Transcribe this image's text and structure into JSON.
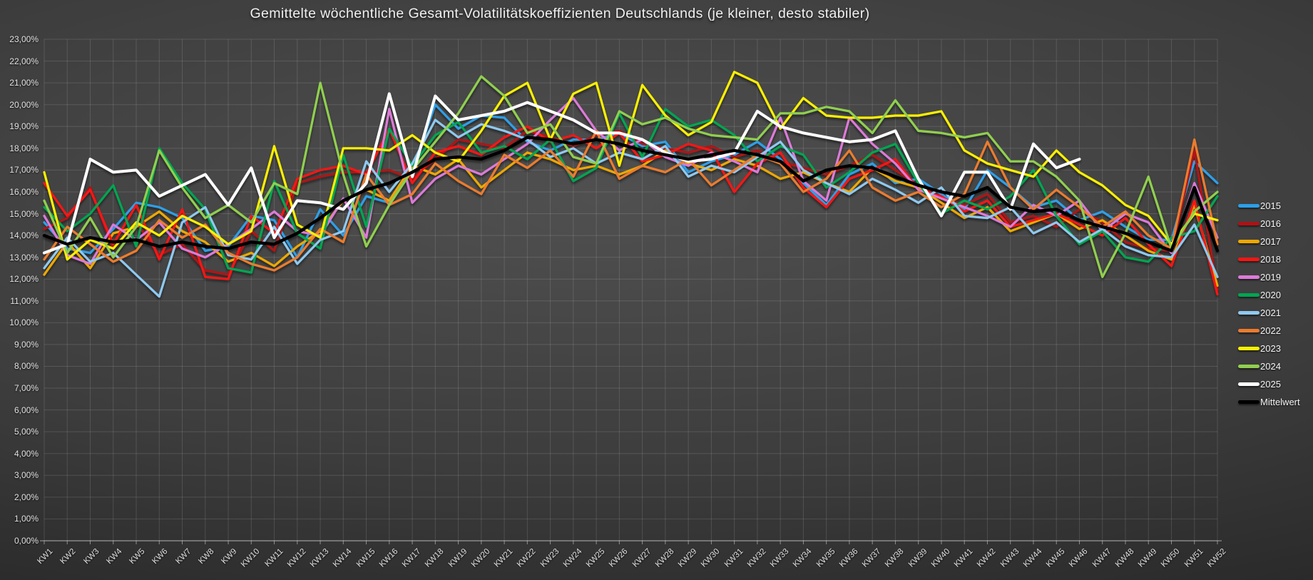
{
  "title": "Gemittelte wöchentliche Gesamt-Volatilitätskoeffizienten Deutschlands (je kleiner, desto stabiler)",
  "chart_data": {
    "type": "line",
    "grid": true,
    "legend_position": "right",
    "ylim": [
      0,
      23
    ],
    "y_step": 1,
    "y_tick_labels": [
      "0,00%",
      "1,00%",
      "2,00%",
      "3,00%",
      "4,00%",
      "5,00%",
      "6,00%",
      "7,00%",
      "8,00%",
      "9,00%",
      "10,00%",
      "11,00%",
      "12,00%",
      "13,00%",
      "14,00%",
      "15,00%",
      "16,00%",
      "17,00%",
      "18,00%",
      "19,00%",
      "20,00%",
      "21,00%",
      "22,00%",
      "23,00%"
    ],
    "categories": [
      "KW1",
      "KW2",
      "KW3",
      "KW4",
      "KW5",
      "KW6",
      "KW7",
      "KW8",
      "KW9",
      "KW10",
      "KW11",
      "KW12",
      "KW13",
      "KW14",
      "KW15",
      "KW16",
      "KW17",
      "KW18",
      "KW19",
      "KW20",
      "KW21",
      "KW22",
      "KW23",
      "KW24",
      "KW25",
      "KW26",
      "KW27",
      "KW28",
      "KW29",
      "KW30",
      "KW31",
      "KW32",
      "KW33",
      "KW34",
      "KW35",
      "KW36",
      "KW37",
      "KW38",
      "KW39",
      "KW40",
      "KW41",
      "KW42",
      "KW43",
      "KW44",
      "KW45",
      "KW46",
      "KW47",
      "KW48",
      "KW49",
      "KW50",
      "KW51",
      "KW52"
    ],
    "series": [
      {
        "name": "2015",
        "color": "#2D9FE8",
        "values": [
          14.6,
          13.4,
          13.2,
          14.3,
          15.5,
          15.3,
          14.8,
          13.3,
          13.5,
          14.9,
          14.7,
          13.0,
          15.2,
          14.0,
          15.8,
          15.5,
          17.0,
          20.0,
          18.9,
          19.5,
          19.4,
          18.3,
          17.9,
          18.4,
          18.4,
          18.7,
          18.1,
          18.3,
          16.9,
          17.4,
          17.7,
          18.3,
          17.5,
          16.4,
          15.4,
          16.8,
          17.3,
          16.4,
          16.6,
          15.9,
          15.2,
          17.0,
          16.2,
          15.3,
          15.6,
          14.7,
          15.1,
          14.4,
          13.8,
          13.8,
          17.4,
          16.4
        ]
      },
      {
        "name": "2016",
        "color": "#AE1216",
        "values": [
          14.3,
          14.8,
          16.2,
          13.4,
          14.6,
          13.1,
          13.6,
          12.4,
          12.2,
          14.2,
          13.3,
          16.4,
          16.7,
          16.9,
          16.9,
          17.0,
          16.6,
          17.5,
          18.4,
          18.2,
          18.0,
          18.8,
          18.5,
          18.1,
          18.6,
          18.8,
          18.2,
          18.0,
          17.8,
          18.1,
          17.6,
          17.9,
          17.4,
          17.1,
          16.8,
          17.2,
          17.7,
          17.0,
          16.3,
          15.7,
          15.4,
          15.9,
          14.6,
          14.9,
          14.4,
          15.2,
          14.6,
          13.7,
          13.4,
          13.3,
          17.9,
          11.5
        ]
      },
      {
        "name": "2017",
        "color": "#EDA800",
        "values": [
          12.2,
          13.7,
          12.5,
          14.1,
          14.4,
          15.1,
          14.2,
          13.7,
          12.8,
          13.2,
          12.6,
          13.5,
          14.2,
          15.6,
          16.1,
          15.6,
          17.2,
          16.8,
          17.5,
          16.2,
          17.0,
          17.8,
          17.5,
          17.0,
          17.2,
          16.8,
          17.2,
          17.9,
          17.3,
          17.0,
          17.5,
          17.2,
          16.6,
          16.9,
          16.4,
          16.0,
          17.1,
          16.5,
          16.2,
          15.5,
          14.8,
          15.3,
          14.2,
          14.6,
          15.0,
          14.3,
          14.7,
          14.0,
          13.3,
          12.9,
          15.4,
          11.7
        ]
      },
      {
        "name": "2018",
        "color": "#F71612",
        "values": [
          16.4,
          14.9,
          16.1,
          13.6,
          15.4,
          12.9,
          15.2,
          12.1,
          12.0,
          14.9,
          14.1,
          16.6,
          17.0,
          17.2,
          16.8,
          18.9,
          16.4,
          17.8,
          18.1,
          17.7,
          18.5,
          19.0,
          18.3,
          18.6,
          18.0,
          18.7,
          17.4,
          17.7,
          18.2,
          17.9,
          16.0,
          17.3,
          17.8,
          16.2,
          15.3,
          16.6,
          17.0,
          17.5,
          16.1,
          15.8,
          15.1,
          15.6,
          14.4,
          14.7,
          15.0,
          14.5,
          14.0,
          14.8,
          13.6,
          12.6,
          15.6,
          11.3
        ]
      },
      {
        "name": "2019",
        "color": "#DD7AD8",
        "values": [
          14.9,
          13.1,
          12.7,
          14.5,
          13.8,
          14.6,
          13.4,
          13.0,
          13.6,
          14.3,
          15.1,
          14.2,
          14.0,
          15.7,
          13.9,
          19.8,
          15.5,
          16.6,
          17.2,
          16.8,
          17.5,
          18.2,
          19.3,
          20.3,
          18.8,
          17.9,
          18.4,
          17.6,
          17.2,
          17.8,
          17.4,
          16.9,
          19.4,
          16.5,
          15.6,
          19.4,
          18.2,
          17.3,
          16.1,
          15.7,
          15.3,
          14.9,
          14.4,
          15.4,
          14.9,
          15.6,
          14.2,
          15.0,
          14.6,
          13.2,
          16.4,
          13.9
        ]
      },
      {
        "name": "2020",
        "color": "#00A551",
        "values": [
          15.3,
          14.2,
          15.0,
          16.3,
          13.5,
          18.0,
          16.4,
          15.2,
          12.5,
          12.3,
          16.5,
          14.1,
          13.4,
          17.7,
          14.4,
          18.9,
          17.2,
          18.6,
          19.2,
          17.8,
          18.1,
          17.5,
          18.4,
          16.5,
          17.1,
          19.6,
          17.6,
          19.8,
          19.0,
          19.3,
          18.6,
          17.4,
          18.1,
          17.7,
          16.2,
          16.9,
          17.8,
          18.2,
          16.4,
          15.0,
          15.6,
          15.2,
          15.8,
          17.0,
          14.9,
          13.6,
          14.2,
          13.0,
          12.8,
          13.9,
          14.2,
          15.8
        ]
      },
      {
        "name": "2021",
        "color": "#8FC9F0",
        "values": [
          12.5,
          13.9,
          12.8,
          13.2,
          12.2,
          11.2,
          14.6,
          15.3,
          13.1,
          12.9,
          14.4,
          12.7,
          13.8,
          14.2,
          17.4,
          16.0,
          17.3,
          19.3,
          18.5,
          19.1,
          18.8,
          18.4,
          17.6,
          18.0,
          17.3,
          17.8,
          17.5,
          18.1,
          16.7,
          17.2,
          16.9,
          17.6,
          18.3,
          17.0,
          16.4,
          15.9,
          16.6,
          16.1,
          15.5,
          16.2,
          14.9,
          14.8,
          15.3,
          14.1,
          14.6,
          13.7,
          14.3,
          13.5,
          13.1,
          13.0,
          14.5,
          12.1
        ]
      },
      {
        "name": "2022",
        "color": "#EB7B2E",
        "values": [
          12.9,
          14.4,
          13.6,
          12.8,
          13.3,
          14.7,
          13.9,
          14.5,
          13.2,
          12.7,
          12.4,
          13.0,
          14.3,
          13.7,
          16.8,
          15.4,
          15.9,
          17.3,
          16.5,
          15.9,
          17.7,
          17.1,
          17.9,
          16.7,
          18.8,
          16.6,
          17.2,
          16.9,
          17.5,
          16.3,
          17.0,
          17.7,
          17.3,
          16.0,
          16.6,
          17.9,
          16.2,
          15.6,
          16.0,
          15.3,
          15.9,
          18.3,
          16.2,
          15.2,
          16.1,
          15.3,
          14.4,
          15.1,
          14.0,
          13.4,
          18.4,
          13.6
        ]
      },
      {
        "name": "2023",
        "color": "#FBF000",
        "values": [
          16.9,
          12.9,
          13.8,
          13.4,
          14.6,
          14.0,
          14.9,
          14.4,
          13.6,
          14.2,
          18.1,
          14.5,
          13.9,
          18.0,
          18.0,
          17.9,
          18.6,
          17.8,
          17.4,
          18.8,
          20.4,
          21.0,
          18.4,
          20.5,
          21.0,
          17.2,
          20.9,
          19.5,
          18.6,
          19.2,
          21.5,
          21.0,
          18.9,
          20.3,
          19.5,
          19.4,
          19.4,
          19.5,
          19.5,
          19.7,
          17.9,
          17.3,
          17.0,
          16.7,
          17.9,
          16.9,
          16.3,
          15.4,
          14.9,
          13.6,
          15.0,
          14.7
        ]
      },
      {
        "name": "2024",
        "color": "#90CF4F",
        "values": [
          15.6,
          13.2,
          14.8,
          13.0,
          14.4,
          17.9,
          16.2,
          14.8,
          15.4,
          14.6,
          16.4,
          15.9,
          21.0,
          16.8,
          13.5,
          15.4,
          17.0,
          18.3,
          19.6,
          21.3,
          20.4,
          18.7,
          19.1,
          17.6,
          17.3,
          19.7,
          19.1,
          19.4,
          18.9,
          18.6,
          18.5,
          18.4,
          19.6,
          19.6,
          19.9,
          19.7,
          18.7,
          20.2,
          18.8,
          18.7,
          18.5,
          18.7,
          17.4,
          17.4,
          16.7,
          15.6,
          12.1,
          14.1,
          16.7,
          13.4,
          15.1,
          16.0
        ]
      },
      {
        "name": "2025",
        "color": "#FFFFFF",
        "values": [
          13.2,
          13.6,
          17.5,
          16.9,
          17.0,
          15.8,
          16.3,
          16.8,
          15.4,
          17.1,
          13.9,
          15.6,
          15.5,
          15.2,
          16.4,
          20.5,
          16.7,
          20.4,
          19.3,
          19.5,
          19.7,
          20.1,
          19.7,
          19.3,
          18.7,
          18.7,
          18.4,
          17.8,
          17.4,
          17.5,
          17.8,
          19.7,
          19.0,
          18.7,
          18.5,
          18.3,
          18.4,
          18.8,
          16.6,
          14.9,
          16.9,
          16.9,
          15.2,
          18.2,
          17.1,
          17.5
        ]
      },
      {
        "name": "Mittelwert",
        "color": "#000000",
        "values": [
          14.0,
          13.6,
          13.9,
          13.7,
          13.8,
          13.5,
          13.7,
          13.5,
          13.4,
          13.7,
          13.6,
          14.1,
          14.8,
          15.6,
          16.1,
          16.4,
          16.9,
          17.5,
          17.6,
          17.5,
          17.9,
          18.5,
          18.4,
          18.2,
          18.4,
          18.2,
          17.9,
          17.7,
          17.5,
          17.7,
          17.9,
          17.7,
          17.4,
          16.5,
          17.0,
          17.2,
          17.1,
          16.7,
          16.3,
          16.0,
          15.8,
          16.2,
          15.3,
          15.1,
          15.2,
          14.7,
          14.4,
          14.1,
          13.7,
          13.3,
          16.2,
          13.3
        ]
      }
    ]
  }
}
